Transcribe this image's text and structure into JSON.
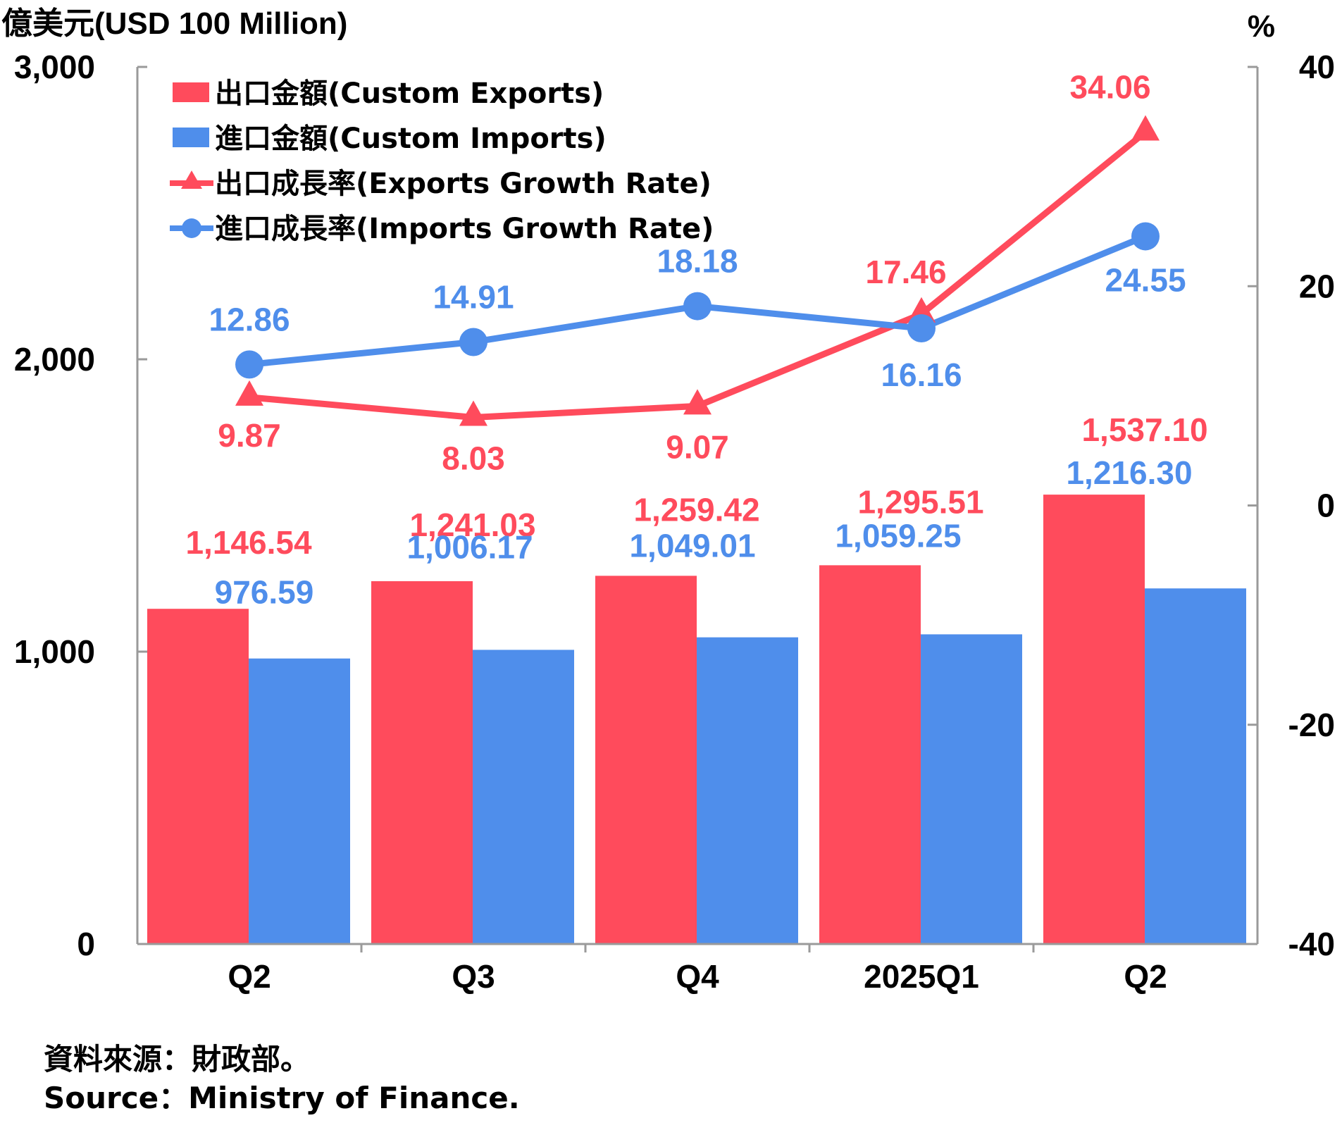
{
  "chart_data": {
    "type": "bar+line",
    "left_axis_title": "億美元(USD 100 Million)",
    "right_axis_title": "%",
    "categories": [
      "Q2",
      "Q3",
      "Q4",
      "2025Q1",
      "Q2"
    ],
    "left_ylim": [
      0,
      3000
    ],
    "left_ticks": [
      "0",
      "1,000",
      "2,000",
      "3,000"
    ],
    "left_tick_values": [
      0,
      1000,
      2000,
      3000
    ],
    "right_ylim": [
      -40,
      40
    ],
    "right_ticks": [
      "-40",
      "-20",
      "0",
      "20",
      "40"
    ],
    "right_tick_values": [
      -40,
      -20,
      0,
      20,
      40
    ],
    "series": [
      {
        "name": "出口金額(Custom Exports)",
        "type": "bar",
        "axis": "left",
        "color": "#FF4B5C",
        "values": [
          1146.54,
          1241.03,
          1259.42,
          1295.51,
          1537.1
        ],
        "labels": [
          "1,146.54",
          "1,241.03",
          "1,259.42",
          "1,295.51",
          "1,537.10"
        ]
      },
      {
        "name": "進口金額(Custom Imports)",
        "type": "bar",
        "axis": "left",
        "color": "#4F8EEB",
        "values": [
          976.59,
          1006.17,
          1049.01,
          1059.25,
          1216.3
        ],
        "labels": [
          "976.59",
          "1,006.17",
          "1,049.01",
          "1,059.25",
          "1,216.30"
        ]
      },
      {
        "name": "出口成長率(Exports Growth Rate)",
        "type": "line",
        "marker": "triangle",
        "axis": "right",
        "color": "#FF4B5C",
        "values": [
          9.87,
          8.03,
          9.07,
          17.46,
          34.06
        ],
        "labels": [
          "9.87",
          "8.03",
          "9.07",
          "17.46",
          "34.06"
        ]
      },
      {
        "name": "進口成長率(Imports Growth Rate)",
        "type": "line",
        "marker": "circle",
        "axis": "right",
        "color": "#4F8EEB",
        "values": [
          12.86,
          14.91,
          18.18,
          16.16,
          24.55
        ],
        "labels": [
          "12.86",
          "14.91",
          "18.18",
          "16.16",
          "24.55"
        ]
      }
    ],
    "legend_position": "top-left"
  },
  "source": {
    "line1": "資料來源：財政部。",
    "line2": "Source：Ministry of Finance."
  }
}
